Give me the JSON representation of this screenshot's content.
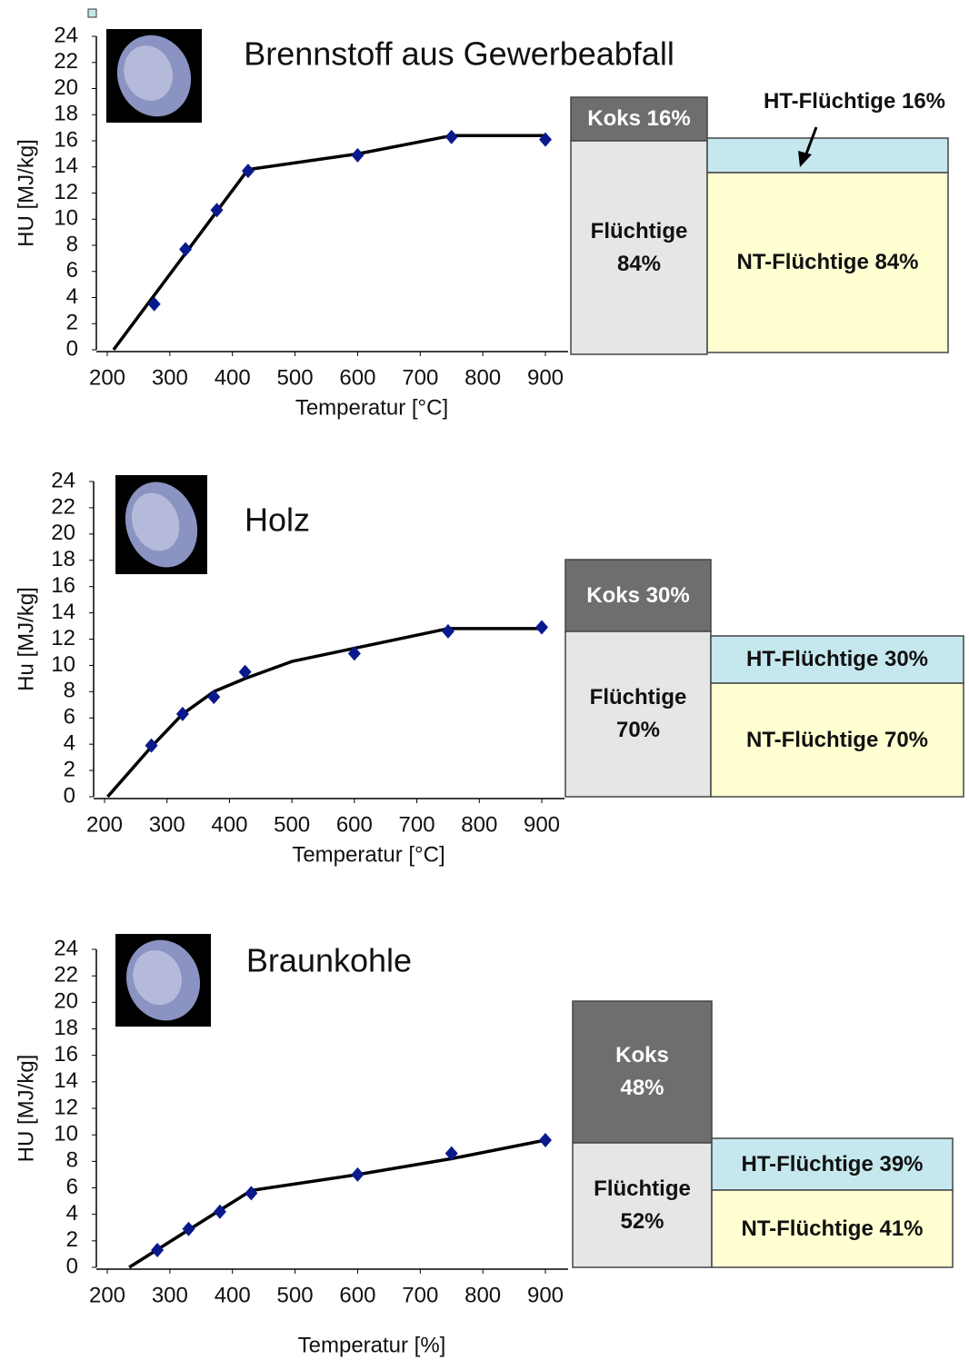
{
  "chart_data": [
    {
      "type": "line",
      "title": "Brennstoff aus Gewerbeabfall",
      "xlabel": "Temperatur [°C]",
      "ylabel": "HU [MJ/kg]",
      "x": [
        275,
        325,
        375,
        425,
        600,
        750,
        900
      ],
      "series": [
        {
          "color": "#0a1a8c",
          "values": [
            3.5,
            7.7,
            10.7,
            13.7,
            14.9,
            16.3,
            16.1
          ]
        }
      ],
      "curve": {
        "color": "#000000",
        "x": [
          210,
          425,
          600,
          750,
          900
        ],
        "values": [
          0,
          13.8,
          15,
          16.4,
          16.4
        ]
      },
      "xlim": [
        200,
        900
      ],
      "ylim": [
        0,
        24
      ],
      "xticks": [
        200,
        300,
        400,
        500,
        600,
        700,
        800,
        900
      ],
      "yticks": [
        0,
        2,
        4,
        6,
        8,
        10,
        12,
        14,
        16,
        18,
        20,
        22,
        24
      ],
      "blocks": [
        {
          "label": "Koks 16%",
          "color": "#6e6e6e"
        },
        {
          "label": "Flüchtige\n84%",
          "color": "#e6e6e6"
        },
        {
          "label": "HT-Flüchtige 16%",
          "color": "#c5e8ee"
        },
        {
          "label": "NT-Flüchtige 84%",
          "color": "#ffffd2"
        }
      ]
    },
    {
      "type": "line",
      "title": "Holz",
      "xlabel": "Temperatur [°C]",
      "ylabel": "Hu [MJ/kg]",
      "x": [
        275,
        325,
        375,
        425,
        600,
        750,
        900
      ],
      "series": [
        {
          "color": "#0a1a8c",
          "values": [
            3.9,
            6.3,
            7.6,
            9.5,
            10.9,
            12.6,
            12.9
          ]
        }
      ],
      "curve": {
        "color": "#000000",
        "x": [
          205,
          275,
          325,
          375,
          425,
          500,
          600,
          750,
          900
        ],
        "values": [
          0,
          3.8,
          6.3,
          8,
          9,
          10.3,
          11.3,
          12.8,
          12.8
        ]
      },
      "xlim": [
        200,
        900
      ],
      "ylim": [
        0,
        24
      ],
      "xticks": [
        200,
        300,
        400,
        500,
        600,
        700,
        800,
        900
      ],
      "yticks": [
        0,
        2,
        4,
        6,
        8,
        10,
        12,
        14,
        16,
        18,
        20,
        22,
        24
      ],
      "blocks": [
        {
          "label": "Koks 30%",
          "color": "#6e6e6e"
        },
        {
          "label": "Flüchtige\n70%",
          "color": "#e6e6e6"
        },
        {
          "label": "HT-Flüchtige 30%",
          "color": "#c5e8ee"
        },
        {
          "label": "NT-Flüchtige 70%",
          "color": "#ffffd2"
        }
      ]
    },
    {
      "type": "line",
      "title": "Braunkohle",
      "xlabel": "Temperatur [%]",
      "ylabel": "HU [MJ/kg]",
      "x": [
        280,
        330,
        380,
        430,
        600,
        750,
        900
      ],
      "series": [
        {
          "color": "#0a1a8c",
          "values": [
            1.3,
            2.9,
            4.2,
            5.6,
            7,
            8.6,
            9.6
          ]
        }
      ],
      "curve": {
        "color": "#000000",
        "x": [
          235,
          430,
          600,
          750,
          900
        ],
        "values": [
          0,
          5.8,
          7,
          8.2,
          9.6
        ]
      },
      "xlim": [
        200,
        900
      ],
      "ylim": [
        0,
        24
      ],
      "xticks": [
        200,
        300,
        400,
        500,
        600,
        700,
        800,
        900
      ],
      "yticks": [
        0,
        2,
        4,
        6,
        8,
        10,
        12,
        14,
        16,
        18,
        20,
        22,
        24
      ],
      "blocks": [
        {
          "label": "Koks\n48%",
          "color": "#6e6e6e"
        },
        {
          "label": "Flüchtige\n52%",
          "color": "#e6e6e6"
        },
        {
          "label": "HT-Flüchtige 39%",
          "color": "#c5e8ee"
        },
        {
          "label": "NT-Flüchtige 41%",
          "color": "#ffffd2"
        }
      ]
    }
  ]
}
